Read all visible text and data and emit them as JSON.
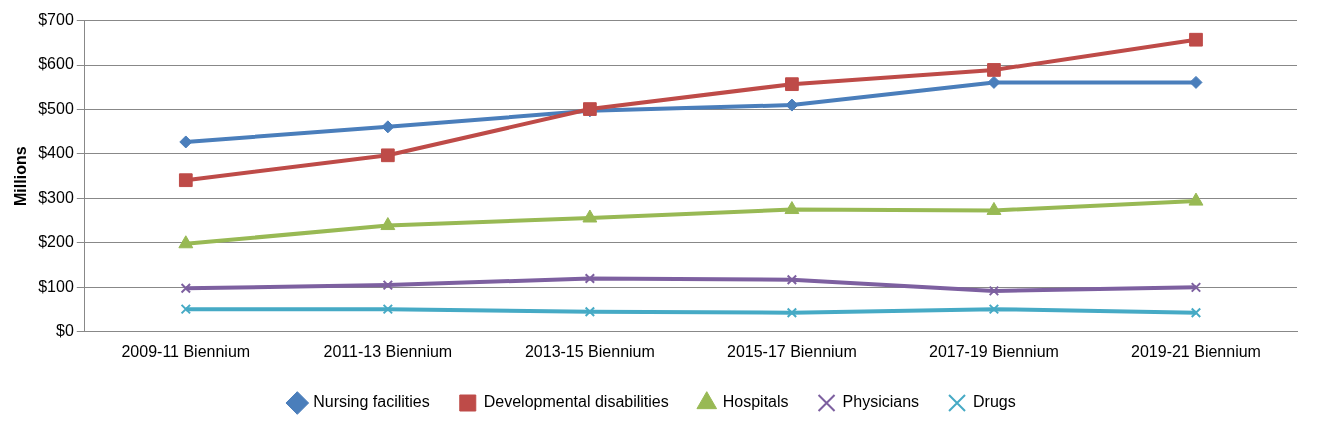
{
  "chart_data": {
    "type": "line",
    "ylabel": "Millions",
    "categories": [
      "2009-11 Biennium",
      "2011-13 Biennium",
      "2013-15 Biennium",
      "2015-17 Biennium",
      "2017-19 Biennium",
      "2019-21 Biennium"
    ],
    "series": [
      {
        "name": "Nursing facilities",
        "color": "#4a7ebb",
        "marker": "diamond",
        "values": [
          427,
          461,
          497,
          510,
          561,
          561
        ]
      },
      {
        "name": "Developmental disabilities",
        "color": "#be4b48",
        "marker": "square",
        "values": [
          341,
          397,
          501,
          557,
          589,
          657
        ]
      },
      {
        "name": "Hospitals",
        "color": "#98b954",
        "marker": "triangle",
        "values": [
          198,
          239,
          256,
          275,
          273,
          294
        ]
      },
      {
        "name": "Physicians",
        "color": "#7d60a0",
        "marker": "cross",
        "values": [
          98,
          105,
          120,
          117,
          92,
          100
        ]
      },
      {
        "name": "Drugs",
        "color": "#46aac5",
        "marker": "cross",
        "values": [
          51,
          51,
          45,
          43,
          51,
          43
        ]
      }
    ],
    "ylim": [
      0,
      700
    ],
    "yticks": [
      {
        "value": 0,
        "label": "$0"
      },
      {
        "value": 100,
        "label": "$100"
      },
      {
        "value": 200,
        "label": "$200"
      },
      {
        "value": 300,
        "label": "$300"
      },
      {
        "value": 400,
        "label": "$400"
      },
      {
        "value": 500,
        "label": "$500"
      },
      {
        "value": 600,
        "label": "$600"
      },
      {
        "value": 700,
        "label": "$700"
      }
    ],
    "grid": "y",
    "legend": "bottom",
    "line_style": "solid"
  }
}
